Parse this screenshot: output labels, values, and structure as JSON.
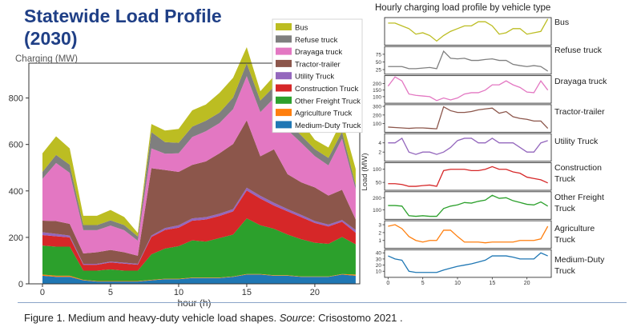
{
  "title": {
    "line1": "Statewide Load Profile",
    "line2": "(2030)"
  },
  "right_title": "Hourly charging load profile by vehicle type",
  "caption": {
    "before": "Figure 1. Medium and heavy-duty vehicle load shapes. ",
    "source_word": "Source",
    "after": ": Crisostomo 2021 ."
  },
  "chart_data": [
    {
      "type": "area",
      "stacked": true,
      "ylabel": "Charging (MW)",
      "xlabel": "hour (h)",
      "xlim": [
        -1,
        23.3
      ],
      "ylim": [
        0,
        950
      ],
      "xticks": [
        0,
        5,
        10,
        15,
        20
      ],
      "yticks": [
        0,
        200,
        400,
        600,
        800
      ],
      "legend_position": "top-right",
      "x": [
        0,
        1,
        2,
        3,
        4,
        5,
        6,
        7,
        8,
        9,
        10,
        11,
        12,
        13,
        14,
        15,
        16,
        17,
        18,
        19,
        20,
        21,
        22,
        23
      ],
      "series": [
        {
          "name": "Medium-Duty Truck",
          "color": "#1f77b4",
          "values": [
            35,
            30,
            30,
            15,
            10,
            10,
            10,
            10,
            15,
            20,
            20,
            25,
            25,
            25,
            30,
            40,
            40,
            35,
            35,
            30,
            30,
            30,
            40,
            35
          ]
        },
        {
          "name": "Agriculture Truck",
          "color": "#ff7f0e",
          "values": [
            5,
            5,
            5,
            2,
            2,
            2,
            2,
            2,
            2,
            2,
            2,
            2,
            2,
            2,
            2,
            2,
            2,
            2,
            2,
            2,
            2,
            2,
            2,
            5
          ]
        },
        {
          "name": "Other Freight Truck",
          "color": "#2ca02c",
          "values": [
            125,
            125,
            125,
            40,
            45,
            50,
            45,
            45,
            110,
            130,
            140,
            160,
            155,
            170,
            180,
            240,
            210,
            200,
            175,
            160,
            145,
            140,
            160,
            130
          ]
        },
        {
          "name": "Construction Truck",
          "color": "#d62728",
          "values": [
            45,
            45,
            40,
            25,
            25,
            30,
            30,
            25,
            75,
            80,
            80,
            85,
            95,
            95,
            100,
            120,
            115,
            100,
            100,
            95,
            85,
            75,
            65,
            50
          ]
        },
        {
          "name": "Utility Truck",
          "color": "#9467bd",
          "values": [
            12,
            10,
            8,
            4,
            4,
            4,
            4,
            4,
            6,
            8,
            10,
            10,
            10,
            10,
            10,
            12,
            12,
            12,
            10,
            10,
            8,
            8,
            8,
            12
          ]
        },
        {
          "name": "Tractor-trailer",
          "color": "#8c564b",
          "values": [
            50,
            55,
            50,
            45,
            50,
            50,
            45,
            35,
            290,
            250,
            230,
            230,
            240,
            260,
            280,
            290,
            170,
            230,
            150,
            140,
            145,
            125,
            130,
            45
          ]
        },
        {
          "name": "Drayaga truck",
          "color": "#e377c2",
          "values": [
            180,
            250,
            220,
            100,
            95,
            105,
            95,
            65,
            85,
            70,
            80,
            120,
            130,
            130,
            150,
            190,
            190,
            220,
            190,
            170,
            135,
            130,
            220,
            130
          ]
        },
        {
          "name": "Refuse truck",
          "color": "#7f7f7f",
          "values": [
            30,
            35,
            35,
            22,
            22,
            22,
            22,
            18,
            70,
            50,
            45,
            45,
            45,
            45,
            50,
            55,
            50,
            50,
            35,
            32,
            30,
            32,
            30,
            18
          ]
        },
        {
          "name": "Bus",
          "color": "#bcbd22",
          "values": [
            80,
            80,
            70,
            40,
            40,
            45,
            35,
            15,
            35,
            50,
            60,
            70,
            70,
            85,
            85,
            70,
            40,
            45,
            60,
            60,
            40,
            45,
            50,
            70
          ]
        }
      ]
    },
    {
      "type": "line",
      "title": "Hourly charging load profile by vehicle type",
      "ylabel": "Load (MW)",
      "xticks": [
        0,
        5,
        10,
        15,
        20
      ],
      "x": [
        0,
        1,
        2,
        3,
        4,
        5,
        6,
        7,
        8,
        9,
        10,
        11,
        12,
        13,
        14,
        15,
        16,
        17,
        18,
        19,
        20,
        21,
        22,
        23
      ],
      "panels": [
        {
          "name": "Bus",
          "color": "#bcbd22",
          "ylim": [
            0,
            100
          ],
          "yticks": [],
          "values": [
            80,
            80,
            70,
            60,
            40,
            45,
            35,
            15,
            35,
            50,
            60,
            70,
            70,
            85,
            85,
            70,
            40,
            45,
            60,
            60,
            40,
            45,
            50,
            95
          ]
        },
        {
          "name": "Refuse truck",
          "color": "#7f7f7f",
          "ylim": [
            10,
            100
          ],
          "yticks": [
            25,
            50,
            75
          ],
          "values": [
            35,
            35,
            35,
            28,
            28,
            30,
            32,
            28,
            85,
            62,
            60,
            62,
            55,
            55,
            58,
            60,
            55,
            55,
            42,
            38,
            35,
            38,
            35,
            20
          ]
        },
        {
          "name": "Drayaga truck",
          "color": "#e377c2",
          "ylim": [
            50,
            260
          ],
          "yticks": [
            100,
            150,
            200
          ],
          "values": [
            180,
            250,
            220,
            120,
            110,
            105,
            100,
            70,
            90,
            75,
            90,
            120,
            130,
            130,
            150,
            190,
            190,
            220,
            190,
            170,
            135,
            130,
            220,
            150
          ]
        },
        {
          "name": "Tractor-trailer",
          "color": "#8c564b",
          "ylim": [
            0,
            320
          ],
          "yticks": [
            100,
            200,
            300
          ],
          "values": [
            60,
            55,
            50,
            45,
            50,
            50,
            45,
            40,
            295,
            250,
            230,
            230,
            240,
            260,
            270,
            280,
            220,
            240,
            180,
            160,
            150,
            130,
            130,
            45
          ]
        },
        {
          "name": "Utility Truck",
          "color": "#9467bd",
          "ylim": [
            0,
            6
          ],
          "yticks": [
            2,
            4
          ],
          "values": [
            4,
            4,
            5,
            2,
            1.5,
            2,
            2,
            1.5,
            2,
            3,
            4.5,
            5,
            5,
            4,
            4,
            5,
            4,
            4,
            4,
            3,
            2,
            2,
            4,
            4.5
          ]
        },
        {
          "name": "Construction Truck",
          "color": "#d62728",
          "ylim": [
            20,
            125
          ],
          "yticks": [
            50,
            100
          ],
          "values": [
            45,
            45,
            42,
            35,
            35,
            38,
            40,
            35,
            95,
            100,
            100,
            100,
            95,
            95,
            100,
            110,
            100,
            100,
            90,
            85,
            70,
            65,
            60,
            48
          ]
        },
        {
          "name": "Other Freight Truck",
          "color": "#2ca02c",
          "ylim": [
            20,
            250
          ],
          "yticks": [
            100,
            200
          ],
          "values": [
            135,
            135,
            130,
            50,
            45,
            50,
            45,
            45,
            110,
            130,
            140,
            160,
            155,
            170,
            180,
            220,
            195,
            200,
            175,
            160,
            145,
            140,
            165,
            130
          ]
        },
        {
          "name": "Agriculture Truck",
          "color": "#ff7f0e",
          "ylim": [
            0,
            3.5
          ],
          "yticks": [
            1,
            2,
            3
          ],
          "values": [
            2.8,
            3,
            2.5,
            1.5,
            1,
            0.8,
            1,
            1,
            2.3,
            2.3,
            1.5,
            0.8,
            0.8,
            0.8,
            0.7,
            0.8,
            0.8,
            0.8,
            0.8,
            1,
            1,
            1,
            1.2,
            2.8
          ]
        },
        {
          "name": "Medium-Duty Truck",
          "color": "#1f77b4",
          "ylim": [
            0,
            45
          ],
          "yticks": [
            10,
            20,
            30,
            40
          ],
          "values": [
            35,
            30,
            28,
            10,
            8,
            8,
            8,
            8,
            12,
            15,
            18,
            20,
            22,
            25,
            28,
            35,
            35,
            35,
            33,
            30,
            30,
            30,
            40,
            35
          ]
        }
      ],
      "labels_right": [
        "Bus",
        "Refuse truck",
        "Drayaga truck",
        "Tractor-trailer",
        "Utility Truck",
        "Construction",
        "Truck",
        "Other Freight",
        "Truck",
        "Agriculture",
        "Truck",
        "Medium-Duty",
        "Truck"
      ],
      "xtick_labels_bottom": [
        "0",
        "5",
        "10",
        "15",
        "20"
      ]
    }
  ]
}
